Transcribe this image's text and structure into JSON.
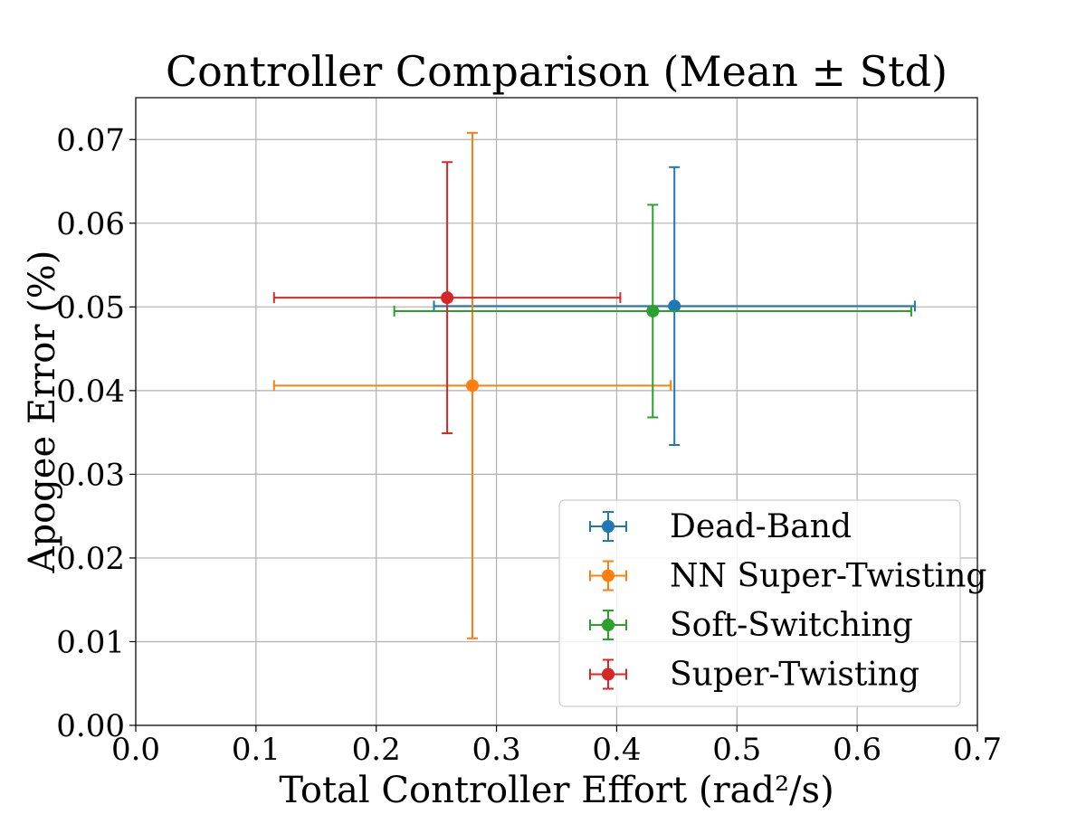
{
  "chart_data": {
    "type": "scatter",
    "title": "Controller Comparison (Mean ± Std)",
    "xlabel": "Total Controller Effort (rad²/s)",
    "ylabel": "Apogee Error (%)",
    "xlim": [
      0.0,
      0.7
    ],
    "ylim": [
      0.0,
      0.075
    ],
    "x_ticks": [
      "0.0",
      "0.1",
      "0.2",
      "0.3",
      "0.4",
      "0.5",
      "0.6",
      "0.7"
    ],
    "y_ticks": [
      "0.00",
      "0.01",
      "0.02",
      "0.03",
      "0.04",
      "0.05",
      "0.06",
      "0.07"
    ],
    "grid": true,
    "legend_position": "lower-right",
    "error_bars": "mean ± std",
    "series": [
      {
        "name": "Dead-Band",
        "color": "#1f77b4",
        "x": 0.448,
        "y": 0.0501,
        "x_err": 0.2,
        "y_err": 0.0166
      },
      {
        "name": "NN Super-Twisting",
        "color": "#ff7f0e",
        "x": 0.28,
        "y": 0.0406,
        "x_err": 0.165,
        "y_err": 0.0302
      },
      {
        "name": "Soft-Switching",
        "color": "#2ca02c",
        "x": 0.43,
        "y": 0.0495,
        "x_err": 0.215,
        "y_err": 0.0127
      },
      {
        "name": "Super-Twisting",
        "color": "#d62728",
        "x": 0.259,
        "y": 0.0511,
        "x_err": 0.144,
        "y_err": 0.0162
      }
    ]
  }
}
